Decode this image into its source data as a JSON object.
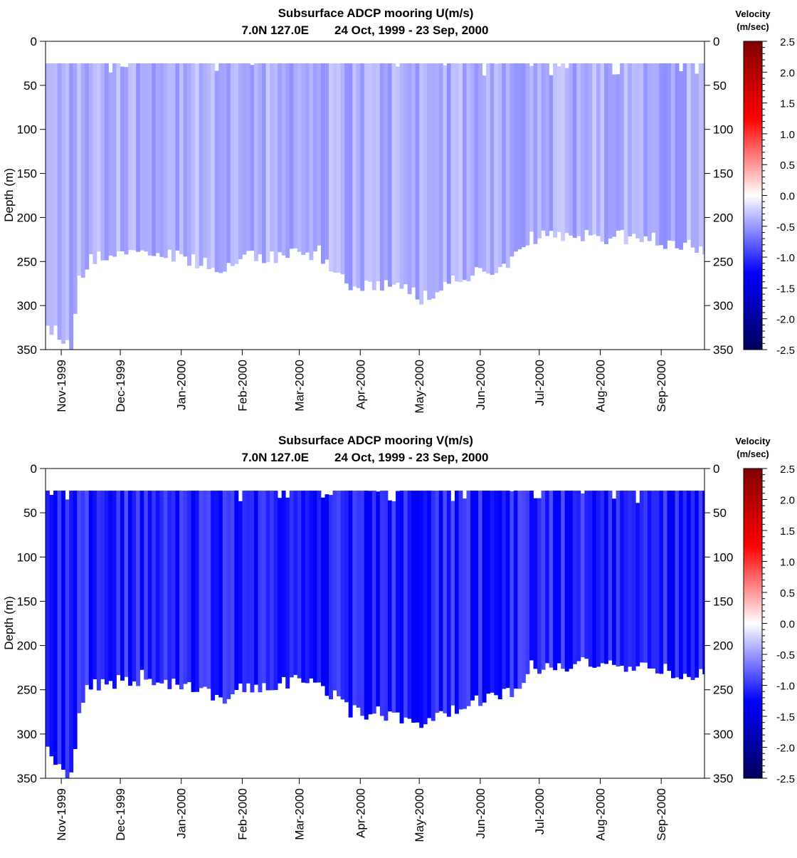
{
  "chart_data": [
    {
      "type": "heatmap",
      "title": "Subsurface ADCP mooring U(m/s)",
      "subtitle_location": "7.0N 127.0E",
      "subtitle_dates": "24 Oct, 1999 - 23 Sep, 2000",
      "ylabel": "Depth (m)",
      "ylim": [
        0,
        350
      ],
      "y_reversed": true,
      "y_ticks": [
        0,
        50,
        100,
        150,
        200,
        250,
        300,
        350
      ],
      "x_range": [
        "1999-10-24",
        "2000-09-23"
      ],
      "x_ticks": [
        {
          "date": "1999-11-01",
          "label": "Nov-1999"
        },
        {
          "date": "1999-12-01",
          "label": "Dec-1999"
        },
        {
          "date": "2000-01-01",
          "label": "Jan-2000"
        },
        {
          "date": "2000-02-01",
          "label": "Feb-2000"
        },
        {
          "date": "2000-03-01",
          "label": "Mar-2000"
        },
        {
          "date": "2000-04-01",
          "label": "Apr-2000"
        },
        {
          "date": "2000-05-01",
          "label": "May-2000"
        },
        {
          "date": "2000-06-01",
          "label": "Jun-2000"
        },
        {
          "date": "2000-07-01",
          "label": "Jul-2000"
        },
        {
          "date": "2000-08-01",
          "label": "Aug-2000"
        },
        {
          "date": "2000-09-01",
          "label": "Sep-2000"
        }
      ],
      "top_depth": 25,
      "bottom_depth_by_date": [
        {
          "date": "1999-10-24",
          "depth": 320
        },
        {
          "date": "1999-10-31",
          "depth": 335
        },
        {
          "date": "1999-11-05",
          "depth": 350
        },
        {
          "date": "1999-11-09",
          "depth": 270
        },
        {
          "date": "1999-11-15",
          "depth": 245
        },
        {
          "date": "1999-12-15",
          "depth": 235
        },
        {
          "date": "2000-01-05",
          "depth": 250
        },
        {
          "date": "2000-01-20",
          "depth": 260
        },
        {
          "date": "2000-02-05",
          "depth": 245
        },
        {
          "date": "2000-03-10",
          "depth": 240
        },
        {
          "date": "2000-03-25",
          "depth": 275
        },
        {
          "date": "2000-04-20",
          "depth": 280
        },
        {
          "date": "2000-05-01",
          "depth": 290
        },
        {
          "date": "2000-05-20",
          "depth": 270
        },
        {
          "date": "2000-06-15",
          "depth": 255
        },
        {
          "date": "2000-06-25",
          "depth": 225
        },
        {
          "date": "2000-07-20",
          "depth": 220
        },
        {
          "date": "2000-08-25",
          "depth": 225
        },
        {
          "date": "2000-09-23",
          "depth": 235
        }
      ],
      "mean_velocity": -0.4,
      "velocity_variability": 0.15,
      "colorbar": {
        "title": "Velocity",
        "units": "(m/sec)",
        "min": -2.5,
        "max": 2.5,
        "ticks": [
          "2.5",
          "2.0",
          "1.5",
          "1.0",
          "0.5",
          "0.0",
          "-0.5",
          "-1.0",
          "-1.5",
          "-2.0",
          "-2.5"
        ],
        "colors": [
          "#00005a",
          "#0000ff",
          "#ffffff",
          "#ff0000",
          "#800000"
        ]
      }
    },
    {
      "type": "heatmap",
      "title": "Subsurface ADCP mooring V(m/s)",
      "subtitle_location": "7.0N 127.0E",
      "subtitle_dates": "24 Oct, 1999 - 23 Sep, 2000",
      "ylabel": "Depth (m)",
      "ylim": [
        0,
        350
      ],
      "y_reversed": true,
      "y_ticks": [
        0,
        50,
        100,
        150,
        200,
        250,
        300,
        350
      ],
      "x_range": [
        "1999-10-24",
        "2000-09-23"
      ],
      "x_ticks": [
        {
          "date": "1999-11-01",
          "label": "Nov-1999"
        },
        {
          "date": "1999-12-01",
          "label": "Dec-1999"
        },
        {
          "date": "2000-01-01",
          "label": "Jan-2000"
        },
        {
          "date": "2000-02-01",
          "label": "Feb-2000"
        },
        {
          "date": "2000-03-01",
          "label": "Mar-2000"
        },
        {
          "date": "2000-04-01",
          "label": "Apr-2000"
        },
        {
          "date": "2000-05-01",
          "label": "May-2000"
        },
        {
          "date": "2000-06-01",
          "label": "Jun-2000"
        },
        {
          "date": "2000-07-01",
          "label": "Jul-2000"
        },
        {
          "date": "2000-08-01",
          "label": "Aug-2000"
        },
        {
          "date": "2000-09-01",
          "label": "Sep-2000"
        }
      ],
      "top_depth": 25,
      "bottom_depth_by_date": [
        {
          "date": "1999-10-24",
          "depth": 320
        },
        {
          "date": "1999-10-31",
          "depth": 335
        },
        {
          "date": "1999-11-05",
          "depth": 350
        },
        {
          "date": "1999-11-09",
          "depth": 270
        },
        {
          "date": "1999-11-15",
          "depth": 245
        },
        {
          "date": "1999-12-15",
          "depth": 235
        },
        {
          "date": "2000-01-05",
          "depth": 250
        },
        {
          "date": "2000-01-20",
          "depth": 260
        },
        {
          "date": "2000-02-05",
          "depth": 245
        },
        {
          "date": "2000-03-10",
          "depth": 240
        },
        {
          "date": "2000-03-25",
          "depth": 275
        },
        {
          "date": "2000-04-20",
          "depth": 280
        },
        {
          "date": "2000-05-01",
          "depth": 290
        },
        {
          "date": "2000-05-20",
          "depth": 270
        },
        {
          "date": "2000-06-15",
          "depth": 255
        },
        {
          "date": "2000-06-25",
          "depth": 225
        },
        {
          "date": "2000-07-20",
          "depth": 220
        },
        {
          "date": "2000-08-25",
          "depth": 225
        },
        {
          "date": "2000-09-23",
          "depth": 235
        }
      ],
      "mean_velocity": -1.1,
      "velocity_variability": 0.25,
      "colorbar": {
        "title": "Velocity",
        "units": "(m/sec)",
        "min": -2.5,
        "max": 2.5,
        "ticks": [
          "2.5",
          "2.0",
          "1.5",
          "1.0",
          "0.5",
          "0.0",
          "-0.5",
          "-1.0",
          "-1.5",
          "-2.0",
          "-2.5"
        ],
        "colors": [
          "#00005a",
          "#0000ff",
          "#ffffff",
          "#ff0000",
          "#800000"
        ]
      }
    }
  ]
}
